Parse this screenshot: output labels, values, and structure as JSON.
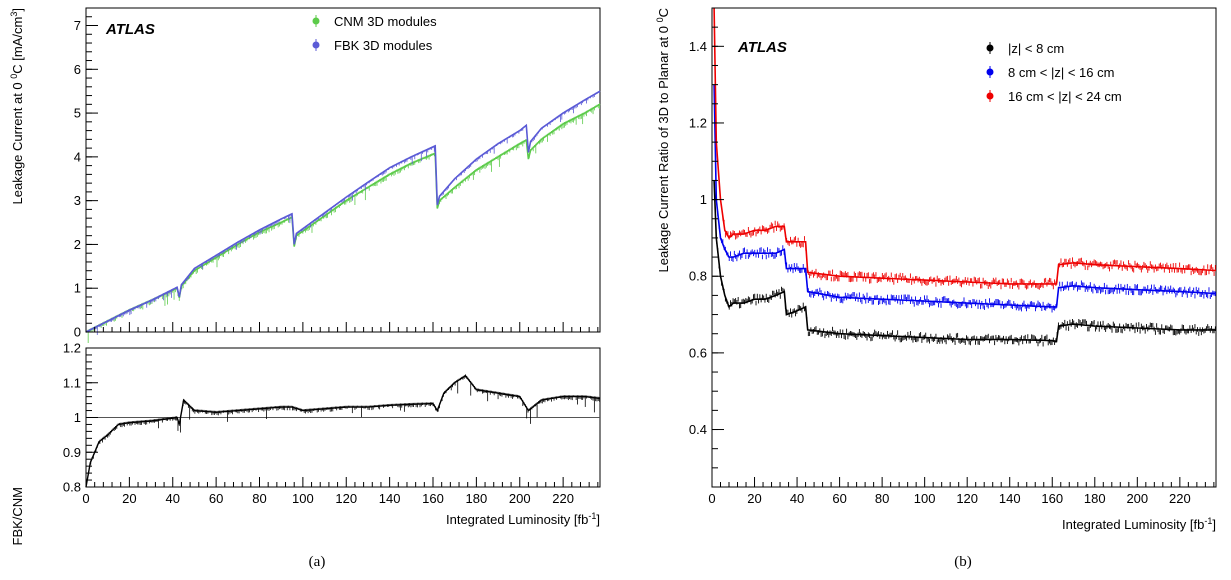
{
  "panel_a": {
    "caption": "(a)",
    "watermark": "ATLAS",
    "xlabel_main": "Integrated Luminosity [fb",
    "xlabel_sup": "-1",
    "xlabel_end": "]",
    "ylabel_main": "Leakage Current at 0 ",
    "ylabel_sup1": "0",
    "ylabel_mid": "C [mA/cm",
    "ylabel_sup2": "3",
    "ylabel_end": "]",
    "legend": [
      "CNM 3D modules",
      "FBK 3D modules"
    ],
    "colors": {
      "cnm": "#5ccb4a",
      "fbk": "#5b5bd6"
    },
    "x_ticks": [
      "0",
      "20",
      "40",
      "60",
      "80",
      "100",
      "120",
      "140",
      "160",
      "180",
      "200",
      "220"
    ],
    "y_ticks": [
      "0",
      "1",
      "2",
      "3",
      "4",
      "5",
      "6",
      "7"
    ],
    "ratio_ylabel": "FBK/CNM",
    "ratio_y_ticks": [
      "0.8",
      "0.9",
      "1",
      "1.1",
      "1.2"
    ]
  },
  "panel_b": {
    "caption": "(b)",
    "watermark": "ATLAS",
    "xlabel_main": "Integrated Luminosity [fb",
    "xlabel_sup": "-1",
    "xlabel_end": "]",
    "ylabel_main": "Leakage Current Ratio of 3D to Planar at 0 ",
    "ylabel_sup": "0",
    "ylabel_end": "C",
    "legend": [
      "|z| < 8 cm",
      "8 cm < |z| < 16 cm",
      "16 cm < |z| < 24 cm"
    ],
    "colors": {
      "inner": "#000000",
      "middle": "#0000ee",
      "outer": "#ee0000"
    },
    "x_ticks": [
      "0",
      "20",
      "40",
      "60",
      "80",
      "100",
      "120",
      "140",
      "160",
      "180",
      "200",
      "220"
    ],
    "y_ticks": [
      "0.4",
      "0.6",
      "0.8",
      "1",
      "1.2",
      "1.4"
    ]
  },
  "chart_data": [
    {
      "type": "line",
      "panel": "(a) upper",
      "xlabel": "Integrated Luminosity [fb-1]",
      "ylabel": "Leakage Current at 0 0C [mA/cm3]",
      "xlim": [
        0,
        237
      ],
      "ylim": [
        0,
        7.4
      ],
      "legend_position": "top-center",
      "series": [
        {
          "name": "CNM 3D modules",
          "x": [
            0,
            10,
            20,
            30,
            42,
            43,
            44,
            50,
            60,
            70,
            80,
            90,
            95,
            96,
            97,
            110,
            120,
            130,
            140,
            150,
            161,
            162,
            163,
            170,
            180,
            190,
            200,
            203,
            204,
            205,
            210,
            220,
            230,
            237
          ],
          "y": [
            0,
            0.25,
            0.5,
            0.72,
            1.0,
            0.78,
            1.05,
            1.4,
            1.7,
            2.0,
            2.28,
            2.5,
            2.62,
            1.95,
            2.2,
            2.65,
            3.0,
            3.3,
            3.6,
            3.85,
            4.08,
            2.82,
            3.0,
            3.3,
            3.7,
            4.0,
            4.3,
            4.38,
            3.95,
            4.15,
            4.4,
            4.75,
            5.0,
            5.2
          ]
        },
        {
          "name": "FBK 3D modules",
          "x": [
            0,
            10,
            20,
            30,
            42,
            43,
            44,
            50,
            60,
            70,
            80,
            90,
            95,
            96,
            97,
            110,
            120,
            130,
            140,
            150,
            161,
            162,
            163,
            170,
            180,
            190,
            200,
            203,
            204,
            205,
            210,
            220,
            230,
            237
          ],
          "y": [
            0,
            0.25,
            0.5,
            0.72,
            1.02,
            0.8,
            1.08,
            1.45,
            1.75,
            2.05,
            2.33,
            2.58,
            2.7,
            2.0,
            2.25,
            2.72,
            3.08,
            3.42,
            3.75,
            4.0,
            4.25,
            2.9,
            3.1,
            3.5,
            3.95,
            4.3,
            4.6,
            4.72,
            4.1,
            4.35,
            4.65,
            5.0,
            5.3,
            5.5
          ]
        }
      ]
    },
    {
      "type": "scatter",
      "panel": "(a) lower",
      "xlabel": "Integrated Luminosity [fb-1]",
      "ylabel": "FBK/CNM",
      "xlim": [
        0,
        237
      ],
      "ylim": [
        0.8,
        1.2
      ],
      "reference_line": 1.0,
      "series": [
        {
          "name": "FBK/CNM",
          "x": [
            0,
            2,
            4,
            6,
            10,
            15,
            20,
            30,
            40,
            42,
            43,
            45,
            50,
            60,
            70,
            80,
            90,
            95,
            100,
            110,
            120,
            130,
            140,
            150,
            160,
            162,
            165,
            170,
            175,
            180,
            190,
            200,
            204,
            210,
            220,
            230,
            237
          ],
          "y": [
            0.8,
            0.87,
            0.9,
            0.93,
            0.95,
            0.98,
            0.985,
            0.99,
            0.998,
            1.0,
            0.98,
            1.05,
            1.02,
            1.015,
            1.02,
            1.025,
            1.03,
            1.03,
            1.02,
            1.025,
            1.03,
            1.03,
            1.035,
            1.038,
            1.04,
            1.02,
            1.07,
            1.1,
            1.12,
            1.08,
            1.07,
            1.06,
            1.02,
            1.05,
            1.06,
            1.06,
            1.055
          ]
        }
      ]
    },
    {
      "type": "scatter",
      "panel": "(b)",
      "xlabel": "Integrated Luminosity [fb-1]",
      "ylabel": "Leakage Current Ratio of 3D to Planar at 0 0C",
      "xlim": [
        0,
        237
      ],
      "ylim": [
        0.25,
        1.5
      ],
      "legend_position": "top-right",
      "series": [
        {
          "name": "|z| < 8 cm",
          "x": [
            1,
            2,
            4,
            6,
            8,
            10,
            15,
            20,
            25,
            30,
            34,
            35,
            40,
            44,
            45,
            60,
            80,
            100,
            120,
            140,
            160,
            162,
            163,
            170,
            180,
            200,
            220,
            237
          ],
          "y": [
            1.05,
            0.9,
            0.8,
            0.75,
            0.72,
            0.73,
            0.73,
            0.74,
            0.74,
            0.75,
            0.76,
            0.7,
            0.71,
            0.72,
            0.66,
            0.65,
            0.645,
            0.64,
            0.635,
            0.635,
            0.632,
            0.63,
            0.67,
            0.675,
            0.67,
            0.665,
            0.66,
            0.66
          ]
        },
        {
          "name": "8 cm < |z| < 16 cm",
          "x": [
            1,
            2,
            4,
            6,
            8,
            10,
            15,
            20,
            25,
            30,
            34,
            35,
            40,
            44,
            45,
            60,
            80,
            100,
            120,
            140,
            160,
            162,
            163,
            170,
            180,
            200,
            220,
            237
          ],
          "y": [
            1.3,
            1.0,
            0.9,
            0.87,
            0.85,
            0.85,
            0.86,
            0.86,
            0.86,
            0.86,
            0.87,
            0.82,
            0.82,
            0.82,
            0.76,
            0.745,
            0.74,
            0.735,
            0.73,
            0.725,
            0.72,
            0.72,
            0.77,
            0.775,
            0.77,
            0.765,
            0.76,
            0.755
          ]
        },
        {
          "name": "16 cm < |z| < 24 cm",
          "x": [
            1,
            2,
            4,
            6,
            8,
            10,
            15,
            20,
            25,
            30,
            34,
            35,
            40,
            44,
            45,
            60,
            80,
            100,
            120,
            140,
            160,
            162,
            163,
            170,
            180,
            200,
            220,
            237
          ],
          "y": [
            1.5,
            1.15,
            1.0,
            0.92,
            0.9,
            0.91,
            0.91,
            0.92,
            0.92,
            0.93,
            0.93,
            0.89,
            0.89,
            0.89,
            0.81,
            0.8,
            0.795,
            0.79,
            0.785,
            0.78,
            0.78,
            0.78,
            0.83,
            0.835,
            0.83,
            0.825,
            0.82,
            0.815
          ]
        }
      ]
    }
  ]
}
